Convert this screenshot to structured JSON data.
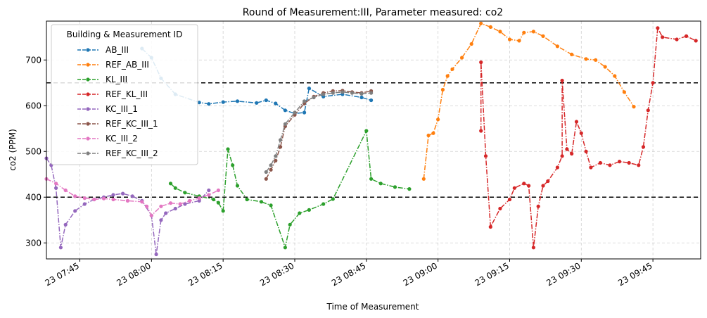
{
  "chart_data": {
    "type": "line",
    "title": "Round of Measurement:III, Parameter measured: co2",
    "xlabel": "Time of Measurement",
    "ylabel": "co2 (PPM)",
    "x_axis": {
      "type": "time",
      "range": [
        "07:38",
        "09:55"
      ],
      "tick_labels": [
        "23 07:45",
        "23 08:00",
        "23 08:15",
        "23 08:30",
        "23 08:45",
        "23 09:00",
        "23 09:15",
        "23 09:30",
        "23 09:45"
      ]
    },
    "y_axis": {
      "range": [
        265,
        785
      ],
      "tick_labels": [
        "300",
        "400",
        "500",
        "600",
        "700"
      ]
    },
    "grid": true,
    "reference_lines": [
      400,
      650
    ],
    "legend": {
      "title": "Building & Measurement ID",
      "placement": "top-left"
    },
    "series": [
      {
        "name": "AB_III",
        "color": "#1f77b4",
        "points": [
          [
            "07:58",
            725
          ],
          [
            "08:00",
            705
          ],
          [
            "08:02",
            660
          ],
          [
            "08:05",
            625
          ],
          [
            "08:10",
            607
          ],
          [
            "08:12",
            604
          ],
          [
            "08:15",
            608
          ],
          [
            "08:18",
            610
          ],
          [
            "08:22",
            606
          ],
          [
            "08:24",
            612
          ],
          [
            "08:26",
            605
          ],
          [
            "08:28",
            590
          ],
          [
            "08:30",
            583
          ],
          [
            "08:32",
            585
          ],
          [
            "08:33",
            638
          ],
          [
            "08:36",
            620
          ],
          [
            "08:40",
            625
          ],
          [
            "08:44",
            618
          ],
          [
            "08:46",
            612
          ]
        ]
      },
      {
        "name": "REF_AB_III",
        "color": "#ff7f0e",
        "points": [
          [
            "08:57",
            440
          ],
          [
            "08:58",
            535
          ],
          [
            "08:59",
            540
          ],
          [
            "09:00",
            570
          ],
          [
            "09:01",
            635
          ],
          [
            "09:02",
            665
          ],
          [
            "09:03",
            680
          ],
          [
            "09:05",
            705
          ],
          [
            "09:07",
            735
          ],
          [
            "09:09",
            780
          ],
          [
            "09:11",
            772
          ],
          [
            "09:13",
            762
          ],
          [
            "09:15",
            745
          ],
          [
            "09:17",
            742
          ],
          [
            "09:18",
            760
          ],
          [
            "09:20",
            762
          ],
          [
            "09:22",
            752
          ],
          [
            "09:25",
            730
          ],
          [
            "09:28",
            712
          ],
          [
            "09:31",
            702
          ],
          [
            "09:33",
            700
          ],
          [
            "09:35",
            685
          ],
          [
            "09:37",
            665
          ],
          [
            "09:39",
            630
          ],
          [
            "09:41",
            598
          ]
        ]
      },
      {
        "name": "KL_III",
        "color": "#2ca02c",
        "points": [
          [
            "08:04",
            430
          ],
          [
            "08:05",
            420
          ],
          [
            "08:07",
            410
          ],
          [
            "08:10",
            402
          ],
          [
            "08:13",
            395
          ],
          [
            "08:14",
            388
          ],
          [
            "08:15",
            370
          ],
          [
            "08:16",
            505
          ],
          [
            "08:17",
            470
          ],
          [
            "08:18",
            425
          ],
          [
            "08:20",
            395
          ],
          [
            "08:23",
            390
          ],
          [
            "08:25",
            382
          ],
          [
            "08:28",
            290
          ],
          [
            "08:29",
            340
          ],
          [
            "08:31",
            365
          ],
          [
            "08:33",
            372
          ],
          [
            "08:36",
            385
          ],
          [
            "08:38",
            396
          ],
          [
            "08:45",
            545
          ],
          [
            "08:46",
            440
          ],
          [
            "08:48",
            430
          ],
          [
            "08:51",
            422
          ],
          [
            "08:54",
            418
          ]
        ]
      },
      {
        "name": "REF_KL_III",
        "color": "#d62728",
        "points": [
          [
            "09:09",
            545
          ],
          [
            "09:09",
            695
          ],
          [
            "09:10",
            490
          ],
          [
            "09:11",
            335
          ],
          [
            "09:13",
            375
          ],
          [
            "09:15",
            395
          ],
          [
            "09:16",
            420
          ],
          [
            "09:18",
            430
          ],
          [
            "09:19",
            425
          ],
          [
            "09:20",
            290
          ],
          [
            "09:21",
            380
          ],
          [
            "09:22",
            425
          ],
          [
            "09:23",
            435
          ],
          [
            "09:25",
            465
          ],
          [
            "09:26",
            490
          ],
          [
            "09:26",
            655
          ],
          [
            "09:27",
            505
          ],
          [
            "09:28",
            495
          ],
          [
            "09:29",
            565
          ],
          [
            "09:30",
            540
          ],
          [
            "09:31",
            500
          ],
          [
            "09:32",
            465
          ],
          [
            "09:34",
            475
          ],
          [
            "09:36",
            470
          ],
          [
            "09:38",
            478
          ],
          [
            "09:40",
            475
          ],
          [
            "09:42",
            470
          ],
          [
            "09:43",
            510
          ],
          [
            "09:44",
            590
          ],
          [
            "09:45",
            650
          ],
          [
            "09:46",
            770
          ],
          [
            "09:47",
            750
          ],
          [
            "09:50",
            745
          ],
          [
            "09:52",
            752
          ],
          [
            "09:54",
            742
          ]
        ]
      },
      {
        "name": "KC_III_1",
        "color": "#9467bd",
        "points": [
          [
            "07:38",
            485
          ],
          [
            "07:39",
            470
          ],
          [
            "07:40",
            420
          ],
          [
            "07:41",
            290
          ],
          [
            "07:42",
            340
          ],
          [
            "07:44",
            370
          ],
          [
            "07:46",
            385
          ],
          [
            "07:48",
            395
          ],
          [
            "07:50",
            400
          ],
          [
            "07:52",
            405
          ],
          [
            "07:54",
            408
          ],
          [
            "07:56",
            402
          ],
          [
            "07:58",
            392
          ],
          [
            "08:00",
            360
          ],
          [
            "08:01",
            275
          ],
          [
            "08:02",
            350
          ],
          [
            "08:03",
            365
          ],
          [
            "08:05",
            375
          ],
          [
            "08:07",
            385
          ],
          [
            "08:10",
            392
          ],
          [
            "08:12",
            415
          ]
        ]
      },
      {
        "name": "REF_KC_III_1",
        "color": "#8c564b",
        "points": [
          [
            "08:24",
            440
          ],
          [
            "08:25",
            460
          ],
          [
            "08:26",
            480
          ],
          [
            "08:27",
            510
          ],
          [
            "08:28",
            555
          ],
          [
            "08:30",
            580
          ],
          [
            "08:32",
            605
          ],
          [
            "08:34",
            620
          ],
          [
            "08:36",
            628
          ],
          [
            "08:38",
            632
          ],
          [
            "08:40",
            633
          ],
          [
            "08:42",
            630
          ],
          [
            "08:44",
            628
          ],
          [
            "08:46",
            632
          ]
        ]
      },
      {
        "name": "KC_III_2",
        "color": "#e377c2",
        "points": [
          [
            "07:38",
            440
          ],
          [
            "07:40",
            430
          ],
          [
            "07:42",
            415
          ],
          [
            "07:44",
            402
          ],
          [
            "07:46",
            398
          ],
          [
            "07:48",
            395
          ],
          [
            "07:50",
            397
          ],
          [
            "07:52",
            395
          ],
          [
            "07:55",
            392
          ],
          [
            "07:58",
            390
          ],
          [
            "07:59",
            380
          ],
          [
            "08:00",
            360
          ],
          [
            "08:02",
            380
          ],
          [
            "08:04",
            387
          ],
          [
            "08:06",
            385
          ],
          [
            "08:08",
            392
          ],
          [
            "08:10",
            398
          ],
          [
            "08:12",
            405
          ],
          [
            "08:14",
            415
          ]
        ]
      },
      {
        "name": "REF_KC_III_2",
        "color": "#7f7f7f",
        "points": [
          [
            "08:24",
            455
          ],
          [
            "08:25",
            470
          ],
          [
            "08:26",
            490
          ],
          [
            "08:27",
            525
          ],
          [
            "08:28",
            560
          ],
          [
            "08:30",
            585
          ],
          [
            "08:32",
            610
          ],
          [
            "08:34",
            618
          ],
          [
            "08:36",
            625
          ],
          [
            "08:38",
            628
          ],
          [
            "08:40",
            630
          ],
          [
            "08:42",
            628
          ],
          [
            "08:44",
            626
          ],
          [
            "08:46",
            628
          ]
        ]
      }
    ]
  }
}
